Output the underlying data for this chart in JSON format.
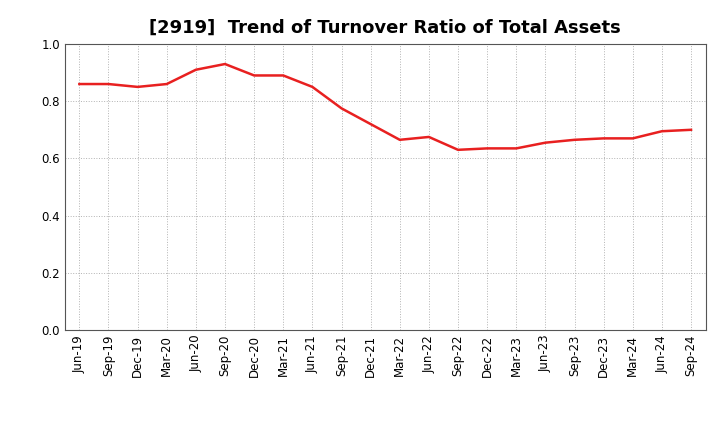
{
  "title": "[2919]  Trend of Turnover Ratio of Total Assets",
  "x_labels": [
    "Jun-19",
    "Sep-19",
    "Dec-19",
    "Mar-20",
    "Jun-20",
    "Sep-20",
    "Dec-20",
    "Mar-21",
    "Jun-21",
    "Sep-21",
    "Dec-21",
    "Mar-22",
    "Jun-22",
    "Sep-22",
    "Dec-22",
    "Mar-23",
    "Jun-23",
    "Sep-23",
    "Dec-23",
    "Mar-24",
    "Jun-24",
    "Sep-24"
  ],
  "y_values": [
    0.86,
    0.86,
    0.85,
    0.86,
    0.91,
    0.93,
    0.89,
    0.89,
    0.85,
    0.775,
    0.72,
    0.665,
    0.675,
    0.63,
    0.635,
    0.635,
    0.655,
    0.665,
    0.67,
    0.67,
    0.695,
    0.7
  ],
  "line_color": "#e82020",
  "line_width": 1.8,
  "ylim": [
    0.0,
    1.0
  ],
  "yticks": [
    0.0,
    0.2,
    0.4,
    0.6,
    0.8,
    1.0
  ],
  "background_color": "#ffffff",
  "grid_color": "#aaaaaa",
  "title_fontsize": 13,
  "tick_fontsize": 8.5
}
